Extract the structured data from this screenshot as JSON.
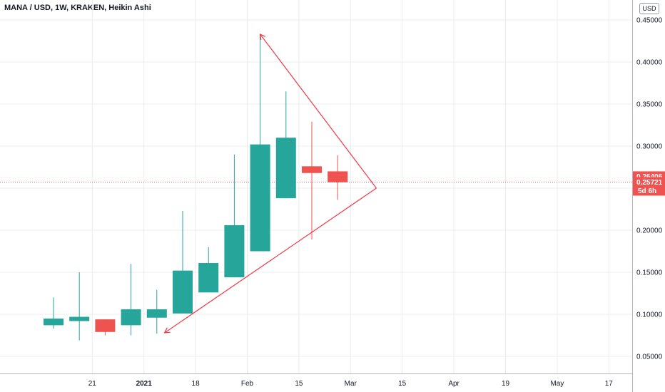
{
  "header": {
    "title": "MANA / USD, 1W, KRAKEN, Heikin Ashi"
  },
  "currency": "USD",
  "colors": {
    "up": "#26a69a",
    "down": "#ef5350",
    "drawing": "#f23645",
    "grid": "#e9ecef",
    "price_line": "#ef5350"
  },
  "price_labels": {
    "last": "0.26406",
    "current": "0.25721",
    "countdown": "5d 6h"
  },
  "chart_data": {
    "type": "candlestick",
    "style": "Heikin Ashi",
    "ylim": [
      0.03,
      0.465
    ],
    "y_ticks": [
      "0.05000",
      "0.10000",
      "0.15000",
      "0.20000",
      "0.25000",
      "0.30000",
      "0.35000",
      "0.40000",
      "0.45000"
    ],
    "x_ticks": [
      {
        "label": "21",
        "i": 1.5,
        "bold": false
      },
      {
        "label": "2021",
        "i": 3.5,
        "bold": true
      },
      {
        "label": "18",
        "i": 5.5,
        "bold": false
      },
      {
        "label": "Feb",
        "i": 7.5,
        "bold": false
      },
      {
        "label": "15",
        "i": 9.5,
        "bold": false
      },
      {
        "label": "Mar",
        "i": 11.5,
        "bold": false
      },
      {
        "label": "15",
        "i": 13.5,
        "bold": false
      },
      {
        "label": "Apr",
        "i": 15.5,
        "bold": false
      },
      {
        "label": "19",
        "i": 17.5,
        "bold": false
      },
      {
        "label": "May",
        "i": 19.5,
        "bold": false
      },
      {
        "label": "17",
        "i": 21.5,
        "bold": false
      }
    ],
    "candles": [
      {
        "open": 0.087,
        "close": 0.095,
        "high": 0.12,
        "low": 0.083
      },
      {
        "open": 0.092,
        "close": 0.097,
        "high": 0.15,
        "low": 0.069
      },
      {
        "open": 0.094,
        "close": 0.079,
        "high": 0.094,
        "low": 0.075
      },
      {
        "open": 0.087,
        "close": 0.106,
        "high": 0.16,
        "low": 0.075
      },
      {
        "open": 0.096,
        "close": 0.106,
        "high": 0.129,
        "low": 0.077
      },
      {
        "open": 0.101,
        "close": 0.152,
        "high": 0.223,
        "low": 0.101
      },
      {
        "open": 0.126,
        "close": 0.161,
        "high": 0.18,
        "low": 0.126
      },
      {
        "open": 0.144,
        "close": 0.206,
        "high": 0.29,
        "low": 0.144
      },
      {
        "open": 0.175,
        "close": 0.302,
        "high": 0.433,
        "low": 0.175
      },
      {
        "open": 0.238,
        "close": 0.31,
        "high": 0.365,
        "low": 0.238
      },
      {
        "open": 0.276,
        "close": 0.268,
        "high": 0.329,
        "low": 0.189
      },
      {
        "open": 0.27,
        "close": 0.257,
        "high": 0.289,
        "low": 0.236
      }
    ],
    "current_price": 0.25721,
    "drawing": {
      "type": "triangle",
      "points": [
        {
          "i": 8.0,
          "price": 0.433
        },
        {
          "i": 12.5,
          "price": 0.25
        },
        {
          "i": 4.3,
          "price": 0.078
        }
      ]
    }
  }
}
